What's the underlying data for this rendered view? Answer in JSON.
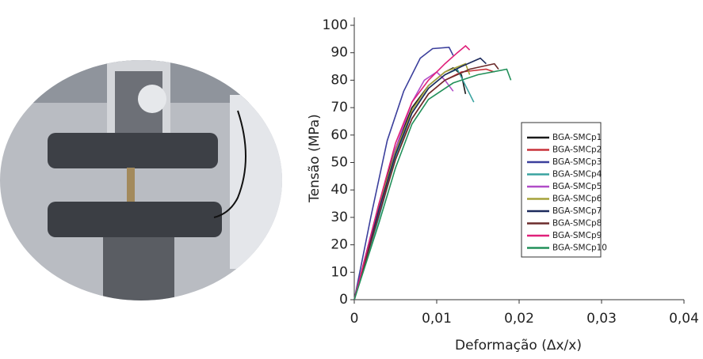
{
  "chart_data": {
    "type": "line",
    "xlabel": "Deformação (Δx/x)",
    "ylabel": "Tensão (MPa)",
    "xlim": [
      0,
      0.04
    ],
    "ylim": [
      0,
      100
    ],
    "xticks": [
      0,
      {
        "value": 0.01,
        "label": "0,01"
      },
      {
        "value": 0.02,
        "label": "0,02"
      },
      {
        "value": 0.03,
        "label": "0,03"
      },
      {
        "value": 0.04,
        "label": "0,04"
      }
    ],
    "yticks": [
      0,
      10,
      20,
      30,
      40,
      50,
      60,
      70,
      80,
      90,
      100
    ],
    "series": [
      {
        "name": "BGA-SMCp1",
        "color": "#1a1a1a",
        "x": [
          0,
          0.003,
          0.005,
          0.007,
          0.009,
          0.011,
          0.012,
          0.013,
          0.0135
        ],
        "values": [
          0,
          35,
          55,
          70,
          78,
          83,
          84.5,
          82,
          75
        ]
      },
      {
        "name": "BGA-SMCp2",
        "color": "#c8323a",
        "x": [
          0,
          0.003,
          0.005,
          0.007,
          0.009,
          0.011,
          0.013,
          0.016,
          0.017
        ],
        "values": [
          0,
          32,
          52,
          66,
          75,
          80,
          83,
          84,
          83
        ]
      },
      {
        "name": "BGA-SMCp3",
        "color": "#3b3f9c",
        "x": [
          0,
          0.002,
          0.004,
          0.006,
          0.008,
          0.0095,
          0.0115,
          0.012
        ],
        "values": [
          0,
          30,
          58,
          76,
          88,
          91.5,
          92,
          89
        ]
      },
      {
        "name": "BGA-SMCp4",
        "color": "#3aa3a0",
        "x": [
          0,
          0.003,
          0.005,
          0.007,
          0.009,
          0.011,
          0.0125,
          0.0135,
          0.0145
        ],
        "values": [
          0,
          30,
          52,
          68,
          77,
          82,
          84,
          78,
          72
        ]
      },
      {
        "name": "BGA-SMCp5",
        "color": "#b04cc8",
        "x": [
          0,
          0.003,
          0.005,
          0.007,
          0.0085,
          0.01,
          0.011,
          0.012
        ],
        "values": [
          0,
          32,
          55,
          72,
          80,
          83,
          80,
          76
        ]
      },
      {
        "name": "BGA-SMCp6",
        "color": "#a5a23a",
        "x": [
          0,
          0.003,
          0.005,
          0.007,
          0.009,
          0.011,
          0.0135,
          0.014
        ],
        "values": [
          0,
          34,
          54,
          69,
          78,
          83,
          86,
          82
        ]
      },
      {
        "name": "BGA-SMCp7",
        "color": "#1c2a5c",
        "x": [
          0,
          0.003,
          0.005,
          0.007,
          0.009,
          0.011,
          0.013,
          0.0153,
          0.016
        ],
        "values": [
          0,
          33,
          53,
          68,
          77,
          82,
          85,
          88,
          86
        ]
      },
      {
        "name": "BGA-SMCp8",
        "color": "#6b2b2b",
        "x": [
          0,
          0.003,
          0.005,
          0.007,
          0.009,
          0.011,
          0.014,
          0.017,
          0.0175
        ],
        "values": [
          0,
          31,
          51,
          66,
          75,
          80,
          84,
          86,
          84
        ]
      },
      {
        "name": "BGA-SMCp9",
        "color": "#e0207a",
        "x": [
          0,
          0.003,
          0.005,
          0.007,
          0.009,
          0.011,
          0.0125,
          0.0135,
          0.014
        ],
        "values": [
          0,
          35,
          57,
          72,
          80,
          86,
          90,
          92.5,
          91
        ]
      },
      {
        "name": "BGA-SMCp10",
        "color": "#22905a",
        "x": [
          0,
          0.003,
          0.005,
          0.007,
          0.009,
          0.012,
          0.015,
          0.0185,
          0.019
        ],
        "values": [
          0,
          28,
          48,
          64,
          73,
          79,
          82,
          84,
          80
        ]
      }
    ]
  }
}
